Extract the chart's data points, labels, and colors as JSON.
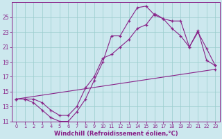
{
  "xlabel": "Windchill (Refroidissement éolien,°C)",
  "background_color": "#cce8ee",
  "line_color": "#882288",
  "grid_color": "#99cccc",
  "xlim": [
    -0.5,
    23.5
  ],
  "ylim": [
    11,
    27
  ],
  "xticks": [
    0,
    1,
    2,
    3,
    4,
    5,
    6,
    7,
    8,
    9,
    10,
    11,
    12,
    13,
    14,
    15,
    16,
    17,
    18,
    19,
    20,
    21,
    22,
    23
  ],
  "yticks": [
    11,
    13,
    15,
    17,
    19,
    21,
    23,
    25
  ],
  "line1_x": [
    0,
    1,
    2,
    3,
    4,
    5,
    6,
    7,
    8,
    9,
    10,
    11,
    12,
    13,
    14,
    15,
    16,
    17,
    18,
    19,
    20,
    21,
    22,
    23
  ],
  "line1_y": [
    14.0,
    14.0,
    13.5,
    12.5,
    11.5,
    11.0,
    11.0,
    12.3,
    14.0,
    16.5,
    19.0,
    22.5,
    22.5,
    24.5,
    26.3,
    26.5,
    25.3,
    24.8,
    24.5,
    24.5,
    21.0,
    23.0,
    20.8,
    18.5
  ],
  "line2_x": [
    0,
    1,
    2,
    3,
    4,
    5,
    6,
    7,
    8,
    9,
    10,
    11,
    12,
    13,
    14,
    15,
    16,
    17,
    18,
    19,
    20,
    21,
    22,
    23
  ],
  "line2_y": [
    14.0,
    14.0,
    14.0,
    13.5,
    12.5,
    11.8,
    11.8,
    13.0,
    15.5,
    17.0,
    19.5,
    20.0,
    21.0,
    22.0,
    23.5,
    24.0,
    25.5,
    24.8,
    23.5,
    22.5,
    21.0,
    23.2,
    19.2,
    18.5
  ],
  "line3_x": [
    0,
    23
  ],
  "line3_y": [
    14.0,
    18.0
  ],
  "font_size": 6.0
}
